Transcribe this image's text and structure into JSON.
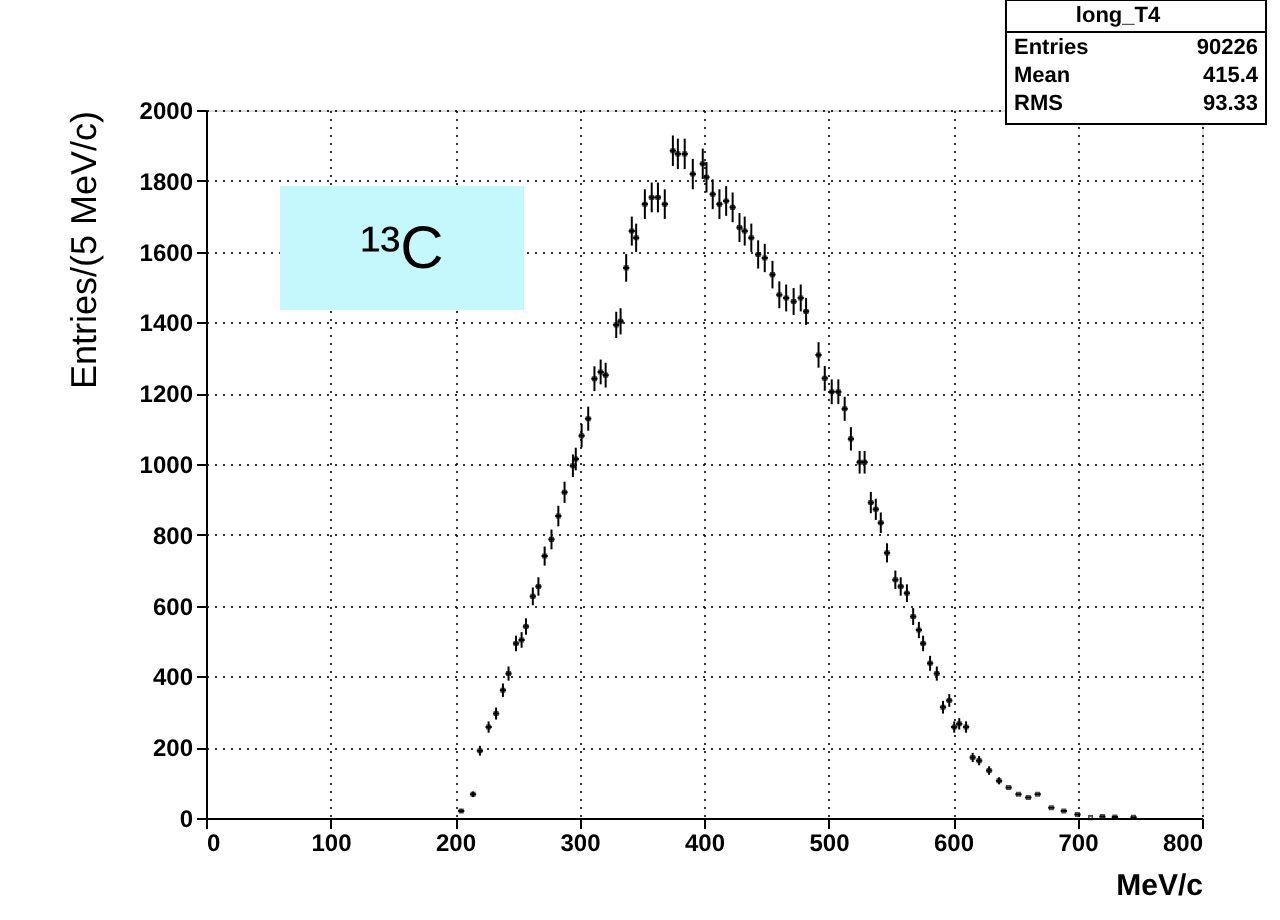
{
  "chart_data": {
    "type": "scatter",
    "xlabel": "MeV/c",
    "ylabel": "Entries/(5 MeV/c)",
    "annotations": [
      "¹³C",
      "long_T4",
      "Entries",
      "90226",
      "Mean",
      "415.4",
      "RMS",
      "93.33"
    ],
    "series": [
      {
        "color": "#000000",
        "x": [
          205,
          214.5,
          220,
          227,
          233,
          238.5,
          243,
          249,
          253.5,
          257,
          262.5,
          267,
          272,
          277.5,
          283,
          288,
          294.7,
          297,
          301.7,
          307,
          312,
          317,
          321,
          329.5,
          333,
          337.5,
          342,
          345.5,
          352.5,
          358,
          363,
          368.5,
          375,
          379,
          384.5,
          391,
          399,
          402,
          407,
          412.4,
          417.8,
          423,
          428.5,
          432.7,
          438,
          443.5,
          448.8,
          455,
          460.5,
          466,
          472,
          477.7,
          482,
          492,
          497,
          502.6,
          507.9,
          513,
          518,
          525,
          529,
          534,
          538,
          542,
          547,
          553.7,
          558,
          563,
          568,
          572.6,
          576,
          581.6,
          587,
          592,
          597,
          601,
          605,
          610.5,
          615.8,
          621,
          629,
          637,
          644.7,
          652.6,
          660.5,
          668,
          679,
          689,
          700,
          710.5,
          720,
          730,
          745
        ],
        "values": [
          20,
          67,
          190,
          257,
          295,
          361,
          408,
          493,
          503,
          541,
          626,
          654,
          740,
          787,
          853,
          920,
          995,
          1014,
          1080,
          1128,
          1241,
          1260,
          1251,
          1393,
          1403,
          1554,
          1658,
          1639,
          1734,
          1753,
          1753,
          1734,
          1885,
          1876,
          1876,
          1819,
          1848,
          1810,
          1762,
          1734,
          1743,
          1725,
          1668,
          1658,
          1639,
          1592,
          1582,
          1535,
          1478,
          1469,
          1459,
          1469,
          1431,
          1308,
          1242,
          1204,
          1204,
          1156,
          1071,
          1005,
          1005,
          891,
          872,
          834,
          749,
          673,
          654,
          635,
          569,
          531,
          493,
          437,
          408,
          313,
          332,
          257,
          266,
          257,
          171,
          162,
          134,
          105,
          86,
          67,
          58,
          67,
          29,
          20,
          10,
          1,
          4,
          3,
          2
        ],
        "errors": [
          4.5,
          8,
          14,
          16,
          17,
          19,
          20,
          22,
          22,
          23,
          25,
          26,
          27,
          28,
          29,
          30,
          32,
          32,
          33,
          34,
          35,
          35,
          35,
          37,
          37,
          39,
          41,
          40,
          42,
          42,
          42,
          42,
          43,
          43,
          43,
          43,
          43,
          43,
          42,
          42,
          42,
          42,
          41,
          41,
          40,
          40,
          40,
          39,
          38,
          38,
          38,
          38,
          38,
          36,
          35,
          35,
          35,
          34,
          33,
          32,
          32,
          30,
          30,
          29,
          27,
          26,
          26,
          25,
          24,
          23,
          22,
          21,
          20,
          18,
          18,
          16,
          16,
          16,
          13,
          13,
          12,
          10,
          null,
          null,
          null,
          null,
          null,
          null,
          null,
          null,
          null,
          null,
          null
        ],
        "xerrors": [
          2.5,
          2.5,
          2.5,
          2.5,
          2.5,
          2.5,
          2.5,
          2.5,
          2.5,
          2.5,
          2.5,
          2.5,
          2.5,
          2.5,
          2.5,
          2.5,
          2.5,
          2.5,
          2.5,
          2.5,
          2.5,
          2.5,
          2.5,
          2.5,
          2.5,
          2.5,
          2.5,
          2.5,
          2.5,
          2.5,
          2.5,
          2.5,
          2.5,
          2.5,
          2.5,
          2.5,
          2.5,
          2.5,
          2.5,
          2.5,
          2.5,
          2.5,
          2.5,
          2.5,
          2.5,
          2.5,
          2.5,
          2.5,
          2.5,
          2.5,
          2.5,
          2.5,
          2.5,
          2.5,
          2.5,
          2.5,
          2.5,
          2.5,
          2.5,
          2.5,
          2.5,
          2.5,
          2.5,
          2.5,
          2.5,
          2.5,
          2.5,
          2.5,
          2.5,
          2.5,
          2.5,
          2.5,
          2.5,
          2.5,
          2.5,
          2.5,
          2.5,
          2.5,
          2.5,
          2.5,
          2.5,
          2.5,
          2.5,
          2.5,
          2.5,
          2.5,
          2.5,
          2.5,
          2.5,
          null,
          2.5,
          2.5,
          2.5
        ]
      }
    ],
    "xlim": [
      0,
      800
    ],
    "xticks": [
      0,
      100,
      200,
      300,
      400,
      500,
      600,
      700,
      800
    ],
    "ylim": [
      0,
      2000
    ],
    "yticks": [
      0,
      200,
      400,
      600,
      800,
      1000,
      1200,
      1400,
      1600,
      1800,
      2000
    ],
    "grid": true,
    "marker": "square"
  }
}
